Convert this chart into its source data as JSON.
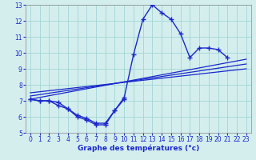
{
  "xlabel": "Graphe des températures (°c)",
  "background_color": "#d4eeee",
  "grid_color": "#a8d8d8",
  "line_color": "#1a28cc",
  "xlim": [
    -0.5,
    23.5
  ],
  "ylim": [
    5,
    13
  ],
  "yticks": [
    5,
    6,
    7,
    8,
    9,
    10,
    11,
    12,
    13
  ],
  "xticks": [
    0,
    1,
    2,
    3,
    4,
    5,
    6,
    7,
    8,
    9,
    10,
    11,
    12,
    13,
    14,
    15,
    16,
    17,
    18,
    19,
    20,
    21,
    22,
    23
  ],
  "hours": [
    0,
    1,
    2,
    3,
    4,
    5,
    6,
    7,
    8,
    9,
    10,
    11,
    12,
    13,
    14,
    15,
    16,
    17,
    18,
    19,
    20,
    21
  ],
  "temp_main": [
    7.1,
    7.0,
    7.0,
    6.9,
    6.5,
    6.0,
    5.8,
    5.5,
    5.5,
    6.4,
    7.2,
    9.9,
    12.1,
    13.0,
    12.5,
    12.1,
    11.2,
    9.7,
    10.3,
    10.3,
    10.2,
    9.7
  ],
  "hours2": [
    0,
    1,
    2,
    3,
    4,
    5,
    6,
    7,
    8,
    9,
    10
  ],
  "temp2": [
    7.1,
    7.0,
    7.0,
    6.7,
    6.5,
    6.1,
    5.9,
    5.6,
    5.6,
    6.4,
    7.1
  ],
  "line1_x": [
    0,
    23
  ],
  "line1_y": [
    7.1,
    9.6
  ],
  "line2_x": [
    0,
    23
  ],
  "line2_y": [
    7.3,
    9.3
  ],
  "line3_x": [
    0,
    23
  ],
  "line3_y": [
    7.5,
    9.0
  ]
}
